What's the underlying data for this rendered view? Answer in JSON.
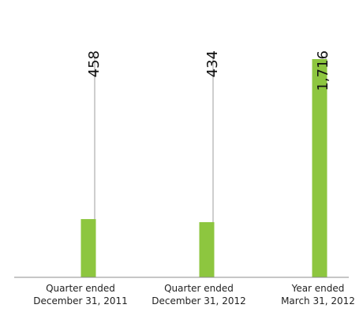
{
  "chart_data": {
    "type": "bar",
    "title": "",
    "xlabel": "",
    "ylabel": "",
    "categories": [
      [
        "Quarter ended",
        "December 31, 2011"
      ],
      [
        "Quarter ended",
        "December 31, 2012"
      ],
      [
        "Year ended",
        "March 31, 2012"
      ]
    ],
    "values": [
      458,
      434,
      1716
    ],
    "value_labels": [
      "458",
      "434",
      "1,716"
    ],
    "ylim": [
      0,
      1716
    ],
    "grid": false,
    "legend": "none",
    "colors": {
      "bar": "#8DC63F",
      "leader_line": "#9E9E9E",
      "baseline": "#8C8C8C"
    }
  }
}
